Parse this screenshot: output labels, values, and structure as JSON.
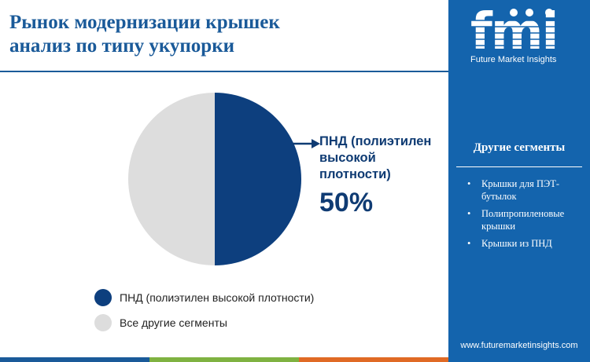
{
  "title": {
    "line1": "Рынок модернизации крышек",
    "line2": "анализ по типу укупорки"
  },
  "chart_data": {
    "type": "pie",
    "slices": [
      {
        "label": "ПНД (полиэтилен высокой плотности)",
        "value": 50,
        "color": "#0d3f7e"
      },
      {
        "label": "Все другие сегменты",
        "value": 50,
        "color": "#dddddd"
      }
    ],
    "callout": {
      "label_line1": "ПНД (полиэтилен",
      "label_line2": "высокой",
      "label_line3": "плотности)",
      "value": "50%"
    }
  },
  "legend": [
    {
      "label": "ПНД (полиэтилен высокой плотности)",
      "color": "#0d3f7e"
    },
    {
      "label": "Все другие сегменты",
      "color": "#dddddd"
    }
  ],
  "sidebar": {
    "logo_text": "fmi",
    "logo_caption": "Future Market Insights",
    "section_title": "Другие сегменты",
    "bullet_glyph": "•",
    "items": [
      {
        "line1": "Крышки для ПЭТ-",
        "line2": "бутылок"
      },
      {
        "line1": "Полипропиленовые",
        "line2": "крышки"
      },
      {
        "line1": "Крышки из ПНД",
        "line2": ""
      }
    ],
    "url": "www.futuremarketinsights.com"
  },
  "colors": {
    "title": "#1a5a99",
    "sidebar_bg": "#1464ad",
    "footer": [
      "#1a5a99",
      "#7fb241",
      "#e06a25",
      "#1a5a99"
    ]
  }
}
